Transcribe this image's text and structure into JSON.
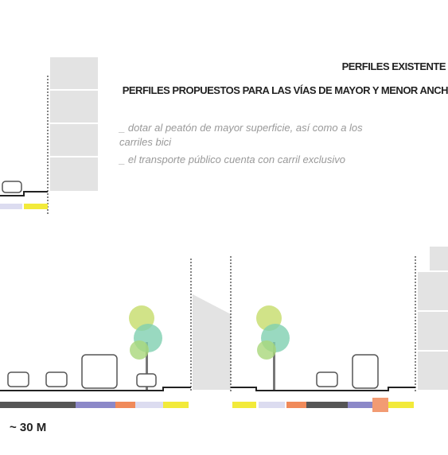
{
  "header": {
    "title": "PERFILES EXISTENTE",
    "subtitle": "PERFILES PROPUESTOS PARA LAS VÍAS DE MAYOR Y MENOR ANCH"
  },
  "notes": [
    "_ dotar al peatón de mayor superficie, así como a los",
    "carriles bici",
    "_ el transporte público cuenta con carril exclusivo"
  ],
  "scale_label": "~ 30 M"
}
